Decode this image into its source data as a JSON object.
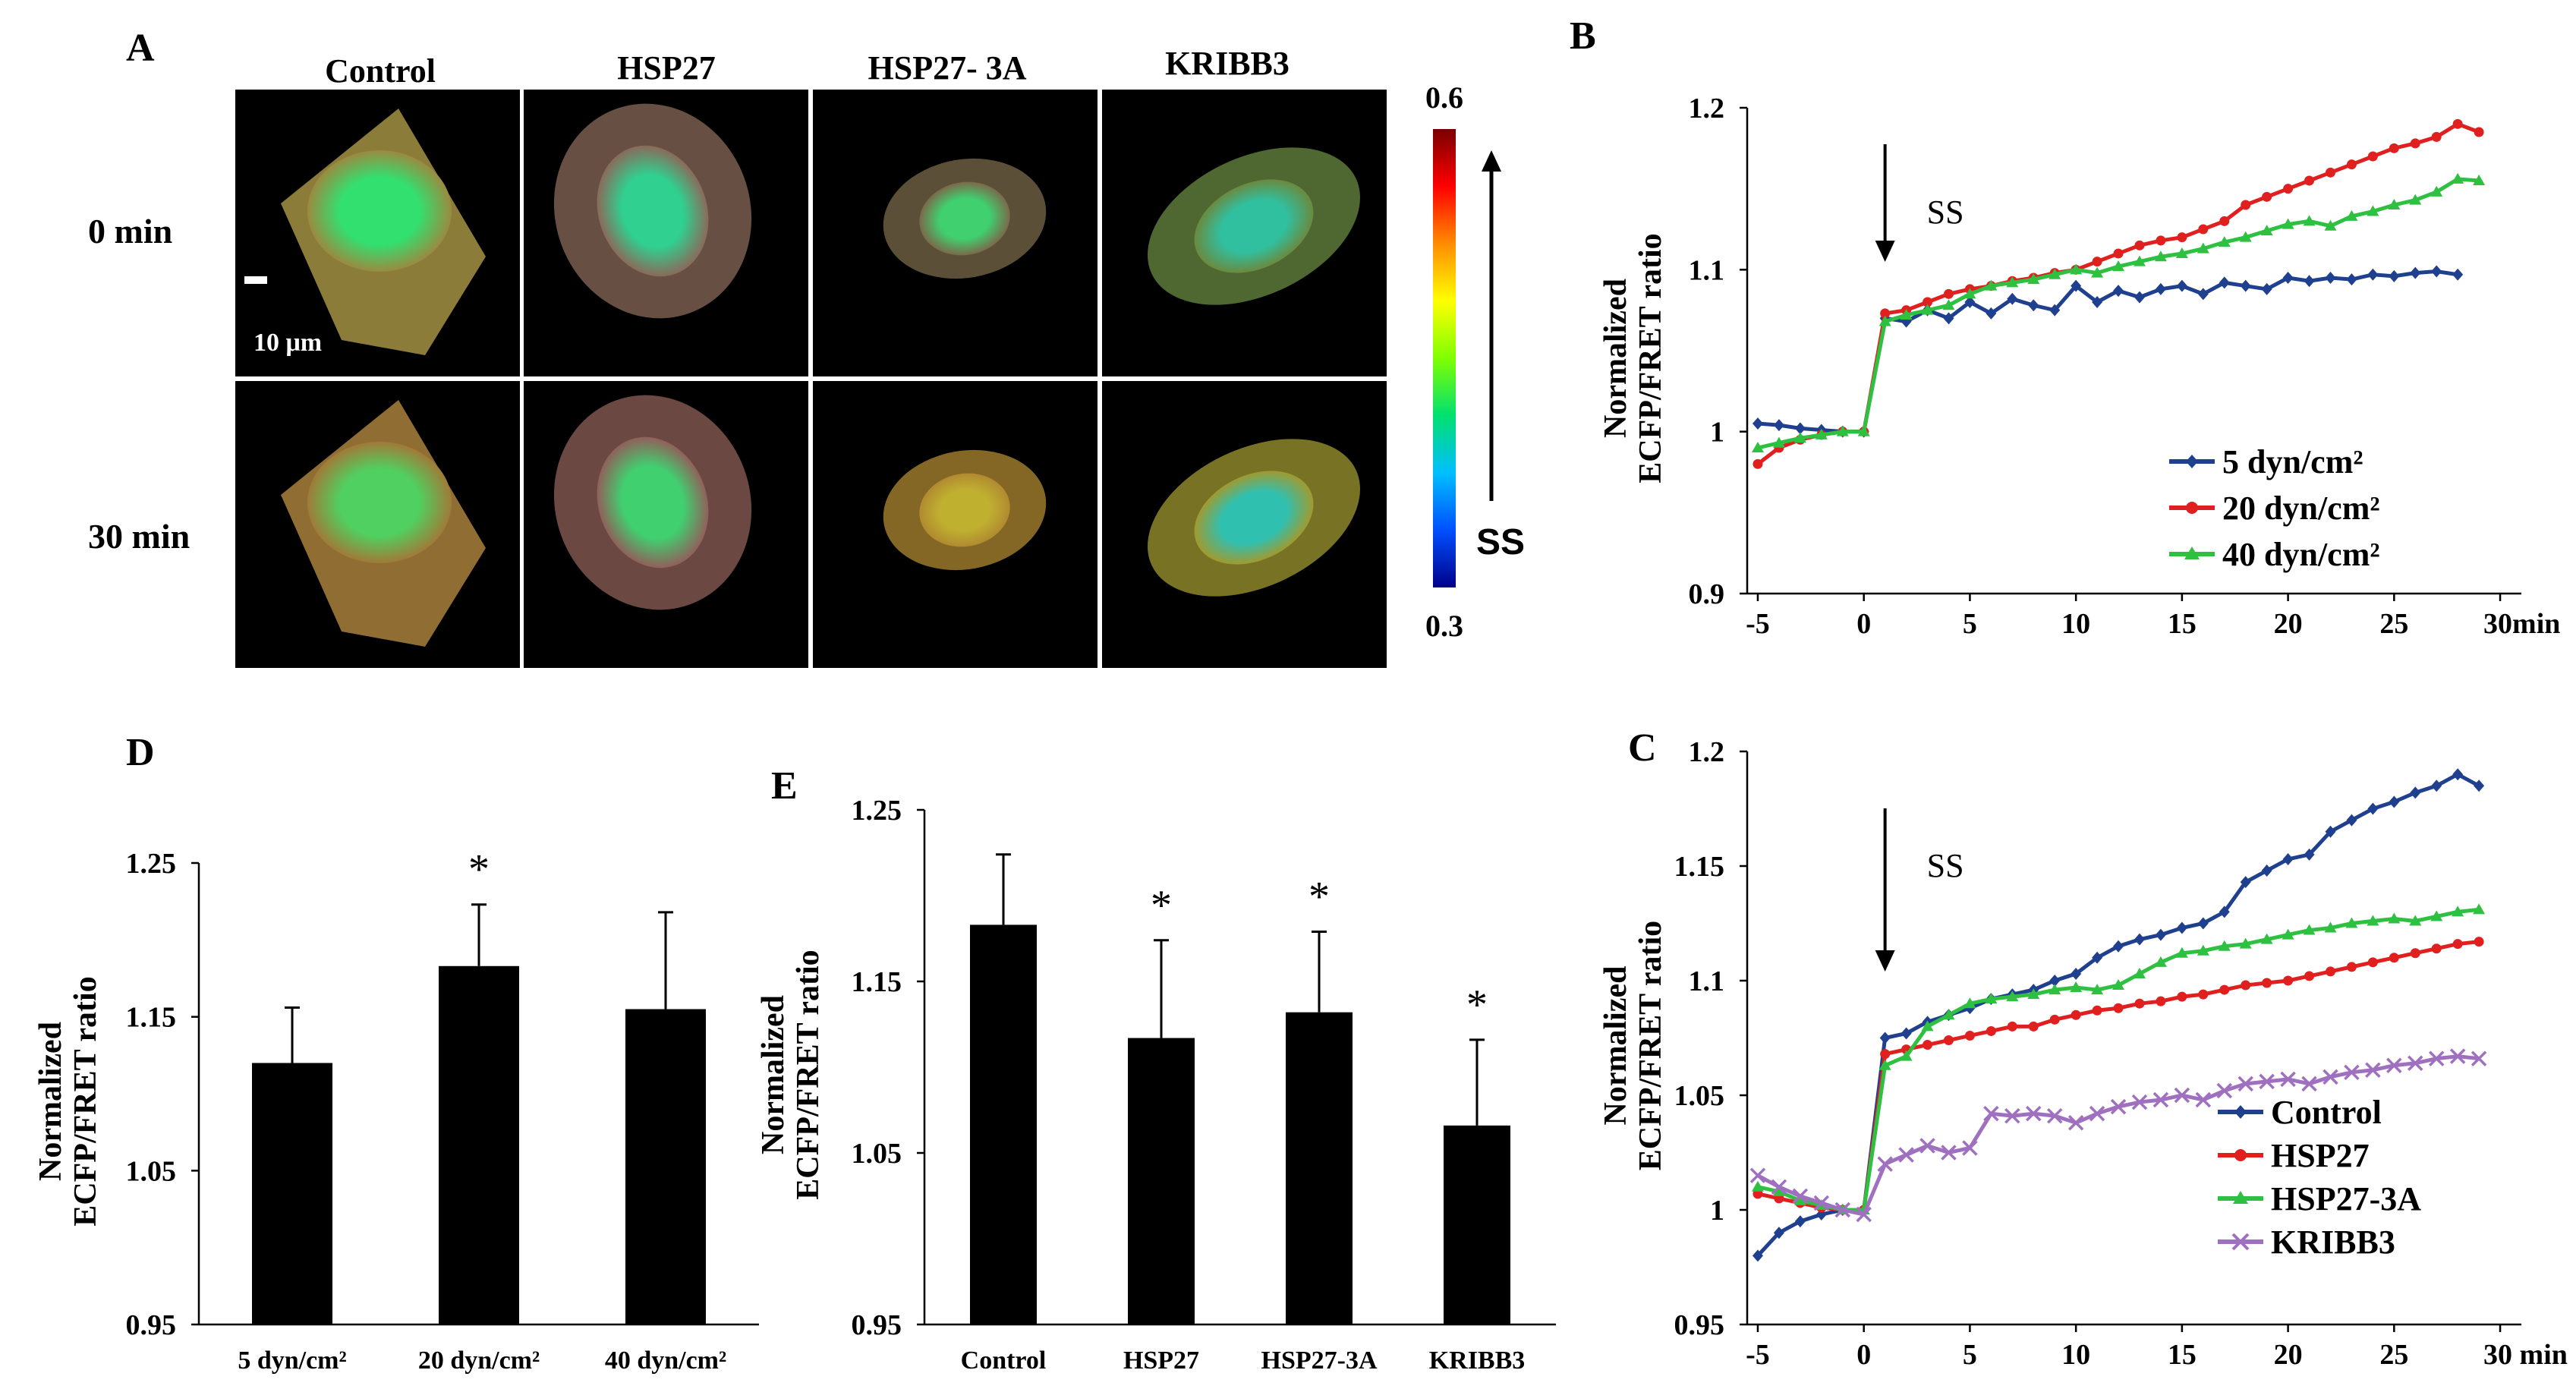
{
  "panels": {
    "A": "A",
    "B": "B",
    "C": "C",
    "D": "D",
    "E": "E"
  },
  "images": {
    "columns": [
      "Control",
      "HSP27",
      "HSP27- 3A",
      "KRIBB3"
    ],
    "rows": [
      "0 min",
      "30 min"
    ],
    "scale_bar_label": "10  μm",
    "colorbar": {
      "max": "0.6",
      "min": "0.3",
      "label": "SS",
      "colors": [
        "#7a0000",
        "#ff0000",
        "#ff8c00",
        "#ffff00",
        "#7fff00",
        "#00e070",
        "#00bfff",
        "#0050ff",
        "#00008b"
      ]
    },
    "cells": [
      {
        "row": 0,
        "col": 0,
        "outer": "#9a8a40",
        "inner": "#32e070"
      },
      {
        "row": 0,
        "col": 1,
        "outer": "#8a6a5a",
        "inner": "#30d090"
      },
      {
        "row": 0,
        "col": 2,
        "outer": "#7a6a4a",
        "inner": "#40d070"
      },
      {
        "row": 0,
        "col": 3,
        "outer": "#6a8a40",
        "inner": "#30c0a0"
      },
      {
        "row": 1,
        "col": 0,
        "outer": "#a07a38",
        "inner": "#50d060"
      },
      {
        "row": 1,
        "col": 1,
        "outer": "#90605a",
        "inner": "#40d070"
      },
      {
        "row": 1,
        "col": 2,
        "outer": "#b08a30",
        "inner": "#c0b030"
      },
      {
        "row": 1,
        "col": 3,
        "outer": "#a09a30",
        "inner": "#30c0b0"
      }
    ]
  },
  "chart_data": [
    {
      "id": "B",
      "type": "line",
      "ylabel": "Normalized\nECFP/FRET ratio",
      "xunit": "min",
      "xticks": [
        -5,
        0,
        5,
        10,
        15,
        20,
        25,
        30
      ],
      "xlabels": [
        "-5",
        "0",
        "5",
        "10",
        "15",
        "20",
        "25",
        "30min"
      ],
      "yticks": [
        0.9,
        1,
        1.1,
        1.2
      ],
      "ylabels": [
        "0.9",
        "1",
        "1.1",
        "1.2"
      ],
      "xlim": [
        -5.5,
        31
      ],
      "ylim": [
        0.9,
        1.2
      ],
      "annotation": {
        "text": "SS",
        "x": 1
      },
      "series": [
        {
          "name": "5 dyn/cm²",
          "color": "#1f3f8f",
          "marker": "diamond",
          "x": [
            -5,
            -4,
            -3,
            -2,
            -1,
            0,
            1,
            2,
            3,
            4,
            5,
            6,
            7,
            8,
            9,
            10,
            11,
            12,
            13,
            14,
            15,
            16,
            17,
            18,
            19,
            20,
            21,
            22,
            23,
            24,
            25,
            26,
            27,
            28
          ],
          "y": [
            1.005,
            1.004,
            1.002,
            1.001,
            1.0,
            1.0,
            1.07,
            1.068,
            1.075,
            1.07,
            1.08,
            1.073,
            1.082,
            1.078,
            1.075,
            1.09,
            1.08,
            1.087,
            1.083,
            1.088,
            1.09,
            1.085,
            1.092,
            1.09,
            1.088,
            1.095,
            1.093,
            1.095,
            1.094,
            1.097,
            1.096,
            1.098,
            1.099,
            1.097
          ]
        },
        {
          "name": "20 dyn/cm²",
          "color": "#e0201f",
          "marker": "circle",
          "x": [
            -5,
            -4,
            -3,
            -2,
            -1,
            0,
            1,
            2,
            3,
            4,
            5,
            6,
            7,
            8,
            9,
            10,
            11,
            12,
            13,
            14,
            15,
            16,
            17,
            18,
            19,
            20,
            21,
            22,
            23,
            24,
            25,
            26,
            27,
            28,
            29
          ],
          "y": [
            0.98,
            0.99,
            0.995,
            0.998,
            1.0,
            1.0,
            1.073,
            1.075,
            1.08,
            1.085,
            1.088,
            1.09,
            1.093,
            1.095,
            1.098,
            1.1,
            1.105,
            1.11,
            1.115,
            1.118,
            1.12,
            1.125,
            1.13,
            1.14,
            1.145,
            1.15,
            1.155,
            1.16,
            1.165,
            1.17,
            1.175,
            1.178,
            1.182,
            1.19,
            1.185
          ]
        },
        {
          "name": "40 dyn/cm²",
          "color": "#2ec040",
          "marker": "triangle",
          "x": [
            -5,
            -4,
            -3,
            -2,
            -1,
            0,
            1,
            2,
            3,
            4,
            5,
            6,
            7,
            8,
            9,
            10,
            11,
            12,
            13,
            14,
            15,
            16,
            17,
            18,
            19,
            20,
            21,
            22,
            23,
            24,
            25,
            26,
            27,
            28,
            29
          ],
          "y": [
            0.99,
            0.993,
            0.996,
            0.998,
            1.0,
            1.0,
            1.068,
            1.072,
            1.075,
            1.078,
            1.085,
            1.09,
            1.092,
            1.094,
            1.097,
            1.1,
            1.098,
            1.102,
            1.105,
            1.108,
            1.11,
            1.113,
            1.117,
            1.12,
            1.124,
            1.128,
            1.13,
            1.127,
            1.133,
            1.136,
            1.14,
            1.143,
            1.148,
            1.156,
            1.155
          ]
        }
      ],
      "legend": "center-right"
    },
    {
      "id": "C",
      "type": "line",
      "ylabel": "Normalized\nECFP/FRET ratio",
      "xunit": "min",
      "xticks": [
        -5,
        0,
        5,
        10,
        15,
        20,
        25,
        30
      ],
      "xlabels": [
        "-5",
        "0",
        "5",
        "10",
        "15",
        "20",
        "25",
        "30 min"
      ],
      "yticks": [
        0.95,
        1,
        1.05,
        1.1,
        1.15,
        1.2
      ],
      "ylabels": [
        "0.95",
        "1",
        "1.05",
        "1.1",
        "1.15",
        "1.2"
      ],
      "xlim": [
        -5.5,
        31
      ],
      "ylim": [
        0.95,
        1.2
      ],
      "annotation": {
        "text": "SS",
        "x": 1
      },
      "series": [
        {
          "name": "Control",
          "color": "#1f3f8f",
          "marker": "diamond",
          "x": [
            -5,
            -4,
            -3,
            -2,
            -1,
            0,
            1,
            2,
            3,
            4,
            5,
            6,
            7,
            8,
            9,
            10,
            11,
            12,
            13,
            14,
            15,
            16,
            17,
            18,
            19,
            20,
            21,
            22,
            23,
            24,
            25,
            26,
            27,
            28,
            29
          ],
          "y": [
            0.98,
            0.99,
            0.995,
            0.998,
            1.0,
            1.0,
            1.075,
            1.077,
            1.082,
            1.085,
            1.088,
            1.092,
            1.094,
            1.096,
            1.1,
            1.103,
            1.11,
            1.115,
            1.118,
            1.12,
            1.123,
            1.125,
            1.13,
            1.143,
            1.148,
            1.153,
            1.155,
            1.165,
            1.17,
            1.175,
            1.178,
            1.182,
            1.185,
            1.19,
            1.185
          ]
        },
        {
          "name": "HSP27",
          "color": "#e0201f",
          "marker": "circle",
          "x": [
            -5,
            -4,
            -3,
            -2,
            -1,
            0,
            1,
            2,
            3,
            4,
            5,
            6,
            7,
            8,
            9,
            10,
            11,
            12,
            13,
            14,
            15,
            16,
            17,
            18,
            19,
            20,
            21,
            22,
            23,
            24,
            25,
            26,
            27,
            28,
            29
          ],
          "y": [
            1.007,
            1.005,
            1.003,
            1.001,
            1.0,
            1.0,
            1.068,
            1.07,
            1.072,
            1.074,
            1.076,
            1.078,
            1.08,
            1.08,
            1.083,
            1.085,
            1.087,
            1.088,
            1.09,
            1.091,
            1.093,
            1.094,
            1.096,
            1.098,
            1.099,
            1.1,
            1.102,
            1.104,
            1.106,
            1.108,
            1.11,
            1.112,
            1.114,
            1.116,
            1.117
          ]
        },
        {
          "name": "HSP27-3A",
          "color": "#2ec040",
          "marker": "triangle",
          "x": [
            -5,
            -4,
            -3,
            -2,
            -1,
            0,
            1,
            2,
            3,
            4,
            5,
            6,
            7,
            8,
            9,
            10,
            11,
            12,
            13,
            14,
            15,
            16,
            17,
            18,
            19,
            20,
            21,
            22,
            23,
            24,
            25,
            26,
            27,
            28,
            29
          ],
          "y": [
            1.01,
            1.008,
            1.004,
            1.002,
            1.0,
            1.0,
            1.063,
            1.067,
            1.08,
            1.085,
            1.09,
            1.092,
            1.093,
            1.094,
            1.096,
            1.097,
            1.096,
            1.098,
            1.103,
            1.108,
            1.112,
            1.113,
            1.115,
            1.116,
            1.118,
            1.12,
            1.122,
            1.123,
            1.125,
            1.126,
            1.127,
            1.126,
            1.128,
            1.13,
            1.131
          ]
        },
        {
          "name": "KRIBB3",
          "color": "#a070c0",
          "marker": "cross",
          "x": [
            -5,
            -4,
            -3,
            -2,
            -1,
            0,
            1,
            2,
            3,
            4,
            5,
            6,
            7,
            8,
            9,
            10,
            11,
            12,
            13,
            14,
            15,
            16,
            17,
            18,
            19,
            20,
            21,
            22,
            23,
            24,
            25,
            26,
            27,
            28,
            29
          ],
          "y": [
            1.015,
            1.01,
            1.006,
            1.003,
            1.0,
            0.998,
            1.02,
            1.024,
            1.028,
            1.025,
            1.027,
            1.042,
            1.041,
            1.042,
            1.041,
            1.038,
            1.042,
            1.045,
            1.047,
            1.048,
            1.05,
            1.048,
            1.052,
            1.055,
            1.056,
            1.057,
            1.055,
            1.058,
            1.06,
            1.061,
            1.063,
            1.064,
            1.066,
            1.067,
            1.066
          ]
        }
      ],
      "legend": "bottom-right"
    },
    {
      "id": "D",
      "type": "bar",
      "ylabel": "Normalized\nECFP/FRET ratio",
      "categories": [
        "5 dyn/cm²",
        "20 dyn/cm²",
        "40 dyn/cm²"
      ],
      "values": [
        1.12,
        1.183,
        1.155
      ],
      "errors": [
        0.036,
        0.04,
        0.063
      ],
      "significant": [
        false,
        true,
        false
      ],
      "yticks": [
        0.95,
        1.05,
        1.15,
        1.25
      ],
      "ylabels": [
        "0.95",
        "1.05",
        "1.15",
        "1.25"
      ],
      "ylim": [
        0.95,
        1.25
      ]
    },
    {
      "id": "E",
      "type": "bar",
      "ylabel": "Normalized\nECFP/FRET ratio",
      "categories": [
        "Control",
        "HSP27",
        "HSP27-3A",
        "KRIBB3"
      ],
      "values": [
        1.183,
        1.117,
        1.132,
        1.066
      ],
      "errors": [
        0.041,
        0.057,
        0.047,
        0.05
      ],
      "significant": [
        false,
        true,
        true,
        true
      ],
      "yticks": [
        0.95,
        1.05,
        1.15,
        1.25
      ],
      "ylabels": [
        "0.95",
        "1.05",
        "1.15",
        "1.25"
      ],
      "ylim": [
        0.95,
        1.25
      ]
    }
  ]
}
